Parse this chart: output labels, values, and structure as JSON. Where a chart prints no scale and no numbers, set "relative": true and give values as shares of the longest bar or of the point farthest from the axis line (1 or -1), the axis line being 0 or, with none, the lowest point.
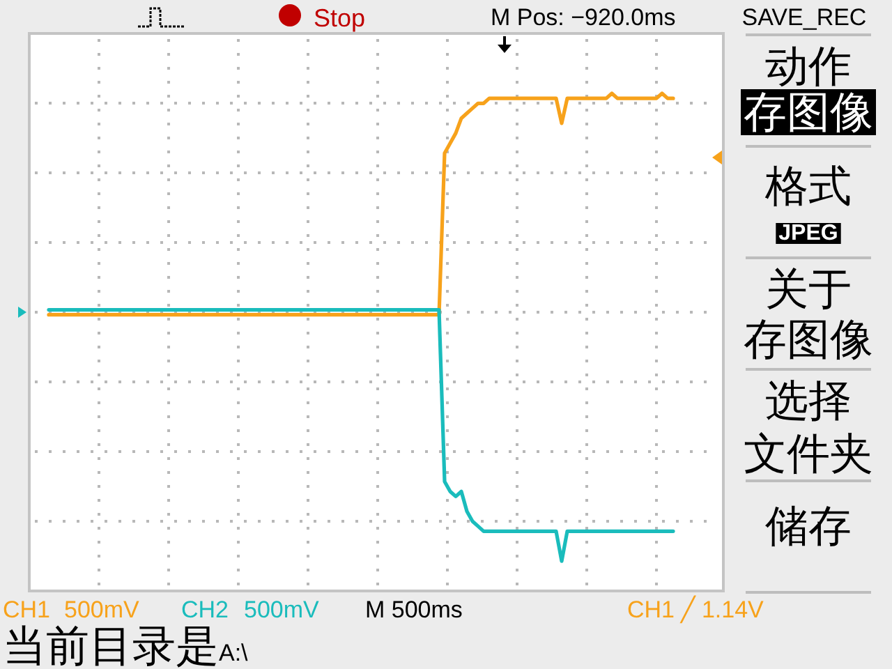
{
  "chart_data": {
    "type": "line",
    "relative": true,
    "grid": true,
    "legend": "bottom",
    "categories": [
      null,
      null,
      null,
      null,
      null,
      null,
      null,
      null,
      null,
      null,
      null,
      null,
      null,
      null,
      null,
      null,
      null,
      null,
      null,
      null,
      null,
      null,
      null,
      null,
      null,
      null,
      null,
      null,
      null,
      null,
      null,
      null,
      null,
      null,
      null,
      null,
      null,
      null,
      null,
      null,
      null,
      null,
      null,
      null,
      null,
      null,
      null,
      null,
      null,
      null,
      null,
      null,
      null,
      null,
      null,
      null,
      null,
      null,
      null,
      null,
      null,
      null,
      null,
      null,
      null,
      null,
      null,
      null,
      null,
      null,
      null,
      null,
      null,
      null,
      null,
      null,
      null,
      null,
      null,
      null,
      null,
      null,
      null,
      null,
      null,
      null,
      null,
      null,
      null,
      null,
      null,
      null,
      null,
      null,
      null,
      null,
      null,
      null,
      null,
      null,
      null,
      null,
      null,
      null,
      null,
      null,
      null,
      null,
      null,
      null,
      null,
      null,
      null
    ],
    "series": [
      {
        "name": "CH1",
        "color": "#f7a21b",
        "values": [
          0.555,
          0.555,
          0.555,
          0.555,
          0.555,
          0.555,
          0.555,
          0.555,
          0.555,
          0.555,
          0.555,
          0.555,
          0.555,
          0.555,
          0.555,
          0.555,
          0.555,
          0.555,
          0.555,
          0.555,
          0.555,
          0.555,
          0.555,
          0.555,
          0.555,
          0.555,
          0.555,
          0.555,
          0.555,
          0.555,
          0.555,
          0.555,
          0.555,
          0.555,
          0.555,
          0.555,
          0.555,
          0.555,
          0.555,
          0.555,
          0.555,
          0.555,
          0.555,
          0.555,
          0.555,
          0.555,
          0.555,
          0.555,
          0.555,
          0.555,
          0.555,
          0.555,
          0.555,
          0.555,
          0.555,
          0.555,
          0.555,
          0.555,
          0.555,
          0.555,
          0.555,
          0.555,
          0.555,
          0.555,
          0.555,
          0.555,
          0.555,
          0.555,
          0.555,
          0.555,
          0.555,
          0.88,
          0.9,
          0.92,
          0.95,
          0.96,
          0.97,
          0.98,
          0.98,
          0.99,
          0.99,
          0.99,
          0.99,
          0.99,
          0.99,
          0.99,
          0.99,
          0.99,
          0.99,
          0.99,
          0.99,
          0.99,
          0.94,
          0.99,
          0.99,
          0.99,
          0.99,
          0.99,
          0.99,
          0.99,
          0.99,
          1,
          0.99,
          0.99,
          0.99,
          0.99,
          0.99,
          0.99,
          0.99,
          0.99,
          1,
          0.99,
          0.99
        ]
      },
      {
        "name": "CH2",
        "color": "#1abcbc",
        "values": [
          0.565,
          0.565,
          0.565,
          0.565,
          0.565,
          0.565,
          0.565,
          0.565,
          0.565,
          0.565,
          0.565,
          0.565,
          0.565,
          0.565,
          0.565,
          0.565,
          0.565,
          0.565,
          0.565,
          0.565,
          0.565,
          0.565,
          0.565,
          0.565,
          0.565,
          0.565,
          0.565,
          0.565,
          0.565,
          0.565,
          0.565,
          0.565,
          0.565,
          0.565,
          0.565,
          0.565,
          0.565,
          0.565,
          0.565,
          0.565,
          0.565,
          0.565,
          0.565,
          0.565,
          0.565,
          0.565,
          0.565,
          0.565,
          0.565,
          0.565,
          0.565,
          0.565,
          0.565,
          0.565,
          0.565,
          0.565,
          0.565,
          0.565,
          0.565,
          0.565,
          0.565,
          0.565,
          0.565,
          0.565,
          0.565,
          0.565,
          0.565,
          0.565,
          0.565,
          0.565,
          0.565,
          0.22,
          0.2,
          0.19,
          0.2,
          0.16,
          0.14,
          0.13,
          0.12,
          0.12,
          0.12,
          0.12,
          0.12,
          0.12,
          0.12,
          0.12,
          0.12,
          0.12,
          0.12,
          0.12,
          0.12,
          0.12,
          0.06,
          0.12,
          0.12,
          0.12,
          0.12,
          0.12,
          0.12,
          0.12,
          0.12,
          0.12,
          0.12,
          0.12,
          0.12,
          0.12,
          0.12,
          0.12,
          0.12,
          0.12,
          0.12,
          0.12,
          0.12
        ]
      }
    ],
    "annotations": [
      "Stop",
      "M Pos: −920.0ms",
      "SAVE_REC",
      "动作",
      "存图像",
      "格式",
      "JPEG",
      "关于",
      "存图像",
      "选择",
      "文件夹",
      "储存",
      "500mV",
      "500mV",
      "M 500ms",
      "CH1 ╱ 1.14V",
      "当前目录是A:\\"
    ]
  }
}
